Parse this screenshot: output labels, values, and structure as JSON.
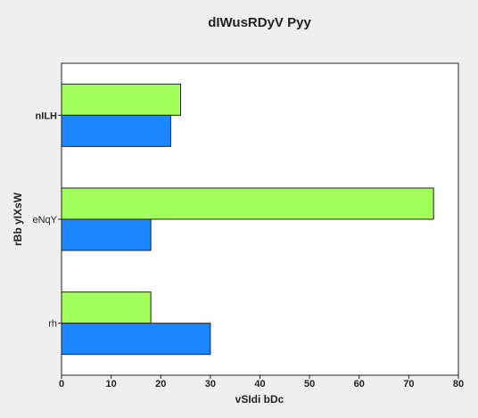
{
  "chart_data": {
    "type": "bar",
    "orientation": "horizontal",
    "title": "dIWusRDyV Pyy",
    "xlabel": "vSIdi bDc",
    "ylabel": "rBb yIXsW",
    "categories": [
      "nILH",
      "eNqY",
      "rh"
    ],
    "xlim": [
      0,
      80
    ],
    "xticks": [
      0,
      10,
      20,
      30,
      40,
      50,
      60,
      70,
      80
    ],
    "grid": false,
    "legend": "none",
    "series": [
      {
        "color": "#a2ff5c",
        "values": [
          24,
          75,
          18
        ]
      },
      {
        "color": "#1a86ff",
        "values": [
          22,
          18,
          30
        ]
      }
    ]
  }
}
